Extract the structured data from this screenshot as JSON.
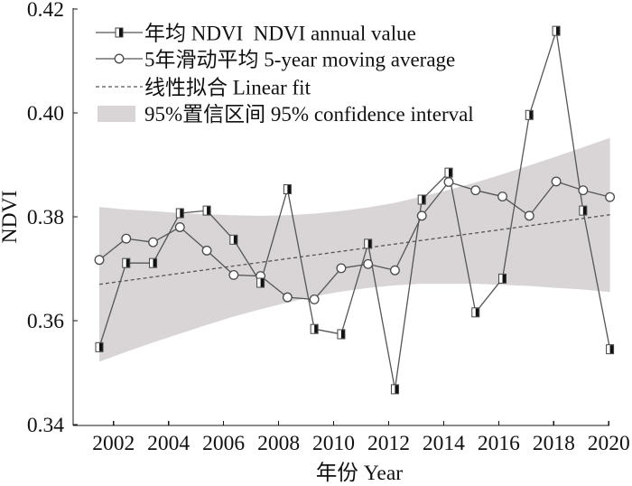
{
  "chart_data": {
    "type": "line",
    "title": "",
    "xlabel": "年份 Year",
    "ylabel": "NDVI",
    "xlim": [
      2001,
      2020
    ],
    "ylim": [
      0.34,
      0.42
    ],
    "grid": false,
    "legend_position": "top-left",
    "x_ticks": [
      2002,
      2004,
      2006,
      2008,
      2010,
      2012,
      2014,
      2016,
      2018,
      2020
    ],
    "x_tick_labels": [
      "2002",
      "2004",
      "2006",
      "2008",
      "2010",
      "2012",
      "2014",
      "2016",
      "2018",
      "2020"
    ],
    "y_ticks": [
      0.34,
      0.36,
      0.38,
      0.4,
      0.42
    ],
    "y_tick_labels": [
      "0.34",
      "0.36",
      "0.38",
      "0.40",
      "0.42"
    ],
    "x": [
      2001,
      2002,
      2003,
      2004,
      2005,
      2006,
      2007,
      2008,
      2009,
      2010,
      2011,
      2012,
      2013,
      2014,
      2015,
      2016,
      2017,
      2018,
      2019,
      2020
    ],
    "series": [
      {
        "name": "年均 NDVI  NDVI annual value",
        "kind": "line",
        "marker": "half-filled-square",
        "values": [
          0.3549,
          0.3711,
          0.3711,
          0.3807,
          0.3812,
          0.3756,
          0.3673,
          0.3853,
          0.3584,
          0.3574,
          0.3748,
          0.3468,
          0.3833,
          0.3885,
          0.3616,
          0.3681,
          0.3996,
          0.4158,
          0.3812,
          0.3545
        ]
      },
      {
        "name": "5年滑动平均 5-year moving average",
        "kind": "line",
        "marker": "open-circle",
        "values": [
          0.3717,
          0.3758,
          0.3751,
          0.378,
          0.3735,
          0.3688,
          0.3686,
          0.3645,
          0.3641,
          0.3701,
          0.3709,
          0.3697,
          0.3802,
          0.3867,
          0.3851,
          0.3839,
          0.3802,
          0.3868,
          0.3851,
          0.3838
        ]
      },
      {
        "name": "线性拟合 Linear fit",
        "kind": "line",
        "line_style": "dashed",
        "x": [
          2001,
          2020
        ],
        "values": [
          0.367,
          0.3804
        ]
      },
      {
        "name": "95%置信区间 95% confidence interval",
        "kind": "band",
        "upper": [
          0.3819,
          0.3814,
          0.3811,
          0.3807,
          0.3805,
          0.3803,
          0.3802,
          0.3803,
          0.3806,
          0.3811,
          0.3818,
          0.3827,
          0.3839,
          0.3852,
          0.3866,
          0.3882,
          0.3899,
          0.3916,
          0.3934,
          0.3952
        ],
        "lower": [
          0.3521,
          0.354,
          0.3558,
          0.3575,
          0.3592,
          0.3608,
          0.3622,
          0.3635,
          0.3647,
          0.3656,
          0.3663,
          0.3668,
          0.3671,
          0.3671,
          0.3671,
          0.3669,
          0.3667,
          0.3663,
          0.366,
          0.3655
        ]
      }
    ],
    "colors": {
      "series_line": "#555555",
      "fit_line": "#555555",
      "marker_stroke": "#4a4a4a",
      "marker_dark_half": "#111111",
      "band_fill": "#d9d5d7",
      "axis": "#1a1a1a"
    }
  }
}
